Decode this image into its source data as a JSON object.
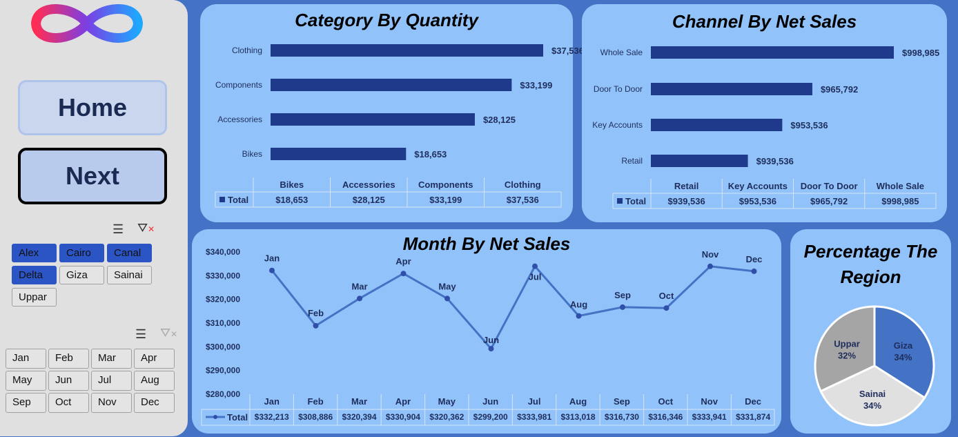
{
  "nav": {
    "home": "Home",
    "next": "Next"
  },
  "region_slicer": {
    "items": [
      {
        "label": "Alex",
        "selected": true
      },
      {
        "label": "Cairo",
        "selected": true
      },
      {
        "label": "Canal",
        "selected": true
      },
      {
        "label": "Delta",
        "selected": true
      },
      {
        "label": "Giza",
        "selected": false
      },
      {
        "label": "Sainai",
        "selected": false
      },
      {
        "label": "Uppar",
        "selected": false
      }
    ]
  },
  "month_slicer": {
    "items": [
      "Jan",
      "Feb",
      "Mar",
      "Apr",
      "May",
      "Jun",
      "Jul",
      "Aug",
      "Sep",
      "Oct",
      "Nov",
      "Dec"
    ]
  },
  "chart_data": [
    {
      "type": "bar",
      "title": "Category By Quantity",
      "categories": [
        "Bikes",
        "Accessories",
        "Components",
        "Clothing"
      ],
      "values": [
        18653,
        28125,
        33199,
        37536
      ],
      "labels": [
        "$18,653",
        "$28,125",
        "$33,199",
        "$37,536"
      ],
      "xlim": [
        0,
        37536
      ],
      "legend": "Total"
    },
    {
      "type": "bar",
      "title": "Channel By Net Sales",
      "categories": [
        "Retail",
        "Key Accounts",
        "Door To Door",
        "Whole Sale"
      ],
      "values": [
        939536,
        953536,
        965792,
        998985
      ],
      "labels": [
        "$939,536",
        "$953,536",
        "$965,792",
        "$998,985"
      ],
      "xlim": [
        900000,
        998985
      ],
      "legend": "Total"
    },
    {
      "type": "line",
      "title": "Month By Net Sales",
      "categories": [
        "Jan",
        "Feb",
        "Mar",
        "Apr",
        "May",
        "Jun",
        "Jul",
        "Aug",
        "Sep",
        "Oct",
        "Nov",
        "Dec"
      ],
      "values": [
        332213,
        308886,
        320394,
        330904,
        320362,
        299200,
        333981,
        313018,
        316730,
        316346,
        333941,
        331874
      ],
      "labels": [
        "$332,213",
        "$308,886",
        "$320,394",
        "$330,904",
        "$320,362",
        "$299,200",
        "$333,981",
        "$313,018",
        "$316,730",
        "$316,346",
        "$333,941",
        "$331,874"
      ],
      "ylim": [
        280000,
        340000
      ],
      "yticks": [
        "$280,000",
        "$290,000",
        "$300,000",
        "$310,000",
        "$320,000",
        "$330,000",
        "$340,000"
      ],
      "legend": "Total"
    },
    {
      "type": "pie",
      "title": "Percentage The Region",
      "categories": [
        "Giza",
        "Sainai",
        "Uppar"
      ],
      "values": [
        34,
        34,
        32
      ],
      "labels": [
        "34%",
        "34%",
        "32%"
      ],
      "colors": [
        "#4472c4",
        "#e0e0e0",
        "#a5a5a5"
      ]
    }
  ]
}
